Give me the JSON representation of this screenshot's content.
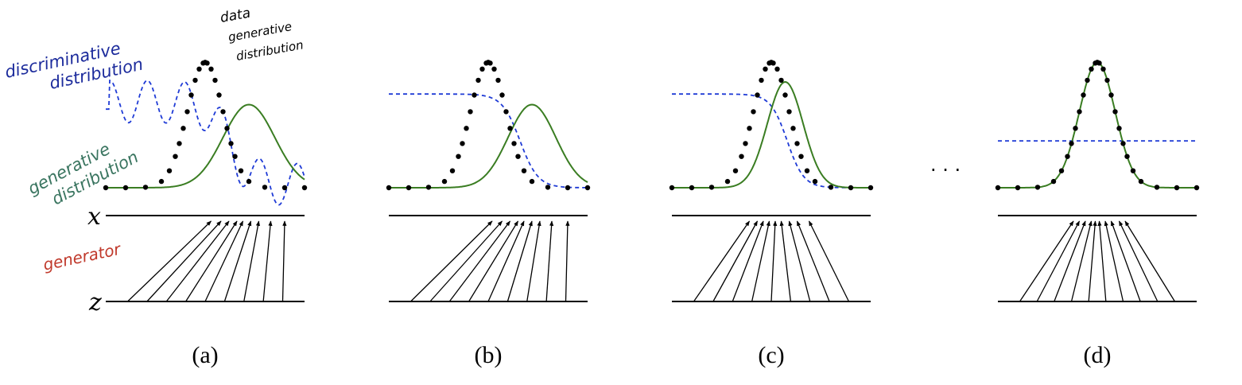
{
  "annotations": {
    "discriminative": [
      "discriminative",
      "distribution"
    ],
    "data_generative": [
      "data",
      "generative",
      "distribution"
    ],
    "generative": [
      "generative",
      "distribution"
    ],
    "generator": "generator"
  },
  "axes": {
    "x": "x",
    "z": "z"
  },
  "ellipsis": "· · ·",
  "colors": {
    "data": "#000000",
    "generative": "#3a7d22",
    "discriminator": "#1f3bd6",
    "discriminative_text": "#1c2b9c",
    "generative_text": "#3a7560",
    "generator_text": "#c0392b"
  },
  "panels": [
    {
      "label": "(a)",
      "disc": "wavy",
      "gen_mean": 0.72,
      "gen_std": 0.13,
      "gen_peak": 0.55,
      "z_targets": [
        0.53,
        0.58,
        0.62,
        0.66,
        0.69,
        0.73,
        0.77,
        0.83,
        0.9
      ]
    },
    {
      "label": "(b)",
      "disc": "sigmoid",
      "gen_mean": 0.72,
      "gen_std": 0.12,
      "gen_peak": 0.55,
      "z_targets": [
        0.52,
        0.57,
        0.61,
        0.65,
        0.68,
        0.72,
        0.76,
        0.82,
        0.9
      ]
    },
    {
      "label": "(c)",
      "disc": "sigmoid2",
      "gen_mean": 0.57,
      "gen_std": 0.09,
      "gen_peak": 0.7,
      "z_targets": [
        0.39,
        0.43,
        0.46,
        0.49,
        0.52,
        0.55,
        0.59,
        0.63,
        0.69
      ]
    },
    {
      "label": "(d)",
      "disc": "flat",
      "gen_mean": 0.5,
      "gen_std": 0.09,
      "gen_peak": 0.83,
      "z_targets": [
        0.38,
        0.41,
        0.44,
        0.47,
        0.49,
        0.51,
        0.54,
        0.57,
        0.61,
        0.64
      ]
    }
  ],
  "data_dist": {
    "mean": 0.5,
    "std": 0.09,
    "peak": 0.83
  }
}
